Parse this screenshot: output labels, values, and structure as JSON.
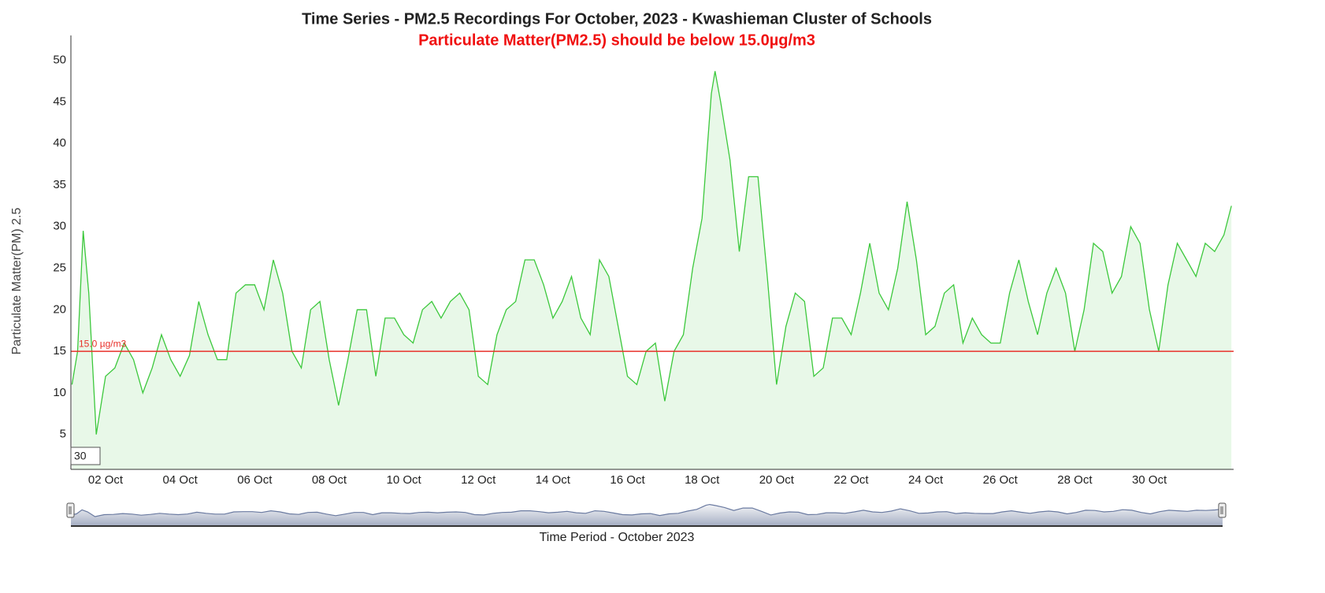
{
  "chart_data": {
    "type": "line",
    "title": "Time Series - PM2.5 Recordings For October, 2023 - Kwashieman Cluster of Schools",
    "subtitle": "Particulate Matter(PM2.5) should be below 15.0µg/m3",
    "y_label": "Particulate Matter(PM) 2.5",
    "x_label": "Time Period - October 2023",
    "rolling_period": "30",
    "color": "#3cc83c",
    "fill": "#e8f8e8",
    "threshold": {
      "value": 15,
      "label": "15.0 µg/m3",
      "color": "#e8302a"
    },
    "xlim": [
      1.07,
      32.26
    ],
    "ylim": [
      0.8,
      53
    ],
    "yticks": [
      5,
      10,
      15,
      20,
      25,
      30,
      35,
      40,
      45,
      50
    ],
    "xticks": [
      {
        "value": 2,
        "label": "02 Oct"
      },
      {
        "value": 4,
        "label": "04 Oct"
      },
      {
        "value": 6,
        "label": "06 Oct"
      },
      {
        "value": 8,
        "label": "08 Oct"
      },
      {
        "value": 10,
        "label": "10 Oct"
      },
      {
        "value": 12,
        "label": "12 Oct"
      },
      {
        "value": 14,
        "label": "14 Oct"
      },
      {
        "value": 16,
        "label": "16 Oct"
      },
      {
        "value": 18,
        "label": "18 Oct"
      },
      {
        "value": 20,
        "label": "20 Oct"
      },
      {
        "value": 22,
        "label": "22 Oct"
      },
      {
        "value": 24,
        "label": "24 Oct"
      },
      {
        "value": 26,
        "label": "26 Oct"
      },
      {
        "value": 28,
        "label": "28 Oct"
      },
      {
        "value": 30,
        "label": "30 Oct"
      }
    ],
    "grid": false,
    "x": [
      1.1,
      1.25,
      1.4,
      1.55,
      1.75,
      2,
      2.25,
      2.5,
      2.75,
      3,
      3.25,
      3.5,
      3.75,
      4,
      4.25,
      4.5,
      4.75,
      5,
      5.25,
      5.5,
      5.75,
      6,
      6.25,
      6.5,
      6.75,
      7,
      7.25,
      7.5,
      7.75,
      8,
      8.25,
      8.5,
      8.75,
      9,
      9.25,
      9.5,
      9.75,
      10,
      10.25,
      10.5,
      10.75,
      11,
      11.25,
      11.5,
      11.75,
      12,
      12.25,
      12.5,
      12.75,
      13,
      13.25,
      13.5,
      13.75,
      14,
      14.25,
      14.5,
      14.75,
      15,
      15.25,
      15.5,
      15.75,
      16,
      16.25,
      16.5,
      16.75,
      17,
      17.25,
      17.5,
      17.75,
      18,
      18.25,
      18.35,
      18.5,
      18.75,
      19,
      19.25,
      19.5,
      19.75,
      20,
      20.25,
      20.5,
      20.75,
      21,
      21.25,
      21.5,
      21.75,
      22,
      22.25,
      22.5,
      22.75,
      23,
      23.25,
      23.5,
      23.75,
      24,
      24.25,
      24.5,
      24.75,
      25,
      25.25,
      25.5,
      25.75,
      26,
      26.25,
      26.5,
      26.75,
      27,
      27.25,
      27.5,
      27.75,
      28,
      28.25,
      28.5,
      28.75,
      29,
      29.25,
      29.5,
      29.75,
      30,
      30.25,
      30.5,
      30.75,
      31,
      31.25,
      31.5,
      31.75,
      32,
      32.2
    ],
    "values": [
      11,
      15,
      29.5,
      22,
      5,
      12,
      13,
      16,
      14,
      10,
      13,
      17,
      14,
      12,
      14.5,
      21,
      17,
      14,
      14,
      22,
      23,
      23,
      20,
      26,
      22,
      15,
      13,
      20,
      21,
      14,
      8.5,
      14,
      20,
      20,
      12,
      19,
      19,
      17,
      16,
      20,
      21,
      19,
      21,
      22,
      20,
      12,
      11,
      17,
      20,
      21,
      26,
      26,
      23,
      19,
      21,
      24,
      19,
      17,
      26,
      24,
      18,
      12,
      11,
      15,
      16,
      9,
      15,
      17,
      25,
      31,
      46,
      48.7,
      45,
      38,
      27,
      36,
      36,
      24,
      11,
      18,
      22,
      21,
      12,
      13,
      19,
      19,
      17,
      22,
      28,
      22,
      20,
      25,
      33,
      26,
      17,
      18,
      22,
      23,
      16,
      19,
      17,
      16,
      16,
      22,
      26,
      21,
      17,
      22,
      25,
      22,
      15,
      20,
      28,
      27,
      22,
      24,
      30,
      28,
      20,
      15,
      23,
      28,
      26,
      24,
      28,
      27,
      29,
      32.5
    ]
  }
}
